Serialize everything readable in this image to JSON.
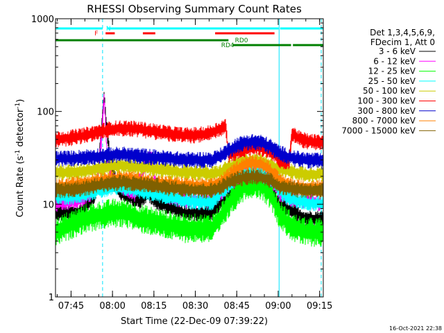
{
  "chart_data": {
    "type": "line",
    "title": "RHESSI Observing Summary Count Rates",
    "xlabel": "Start Time (22-Dec-09 07:39:22)",
    "ylabel_main": "Count Rate (s",
    "ylabel_sup1": "-1",
    "ylabel_mid": " detector",
    "ylabel_sup2": "-1",
    "ylabel_end": ")",
    "yscale": "log",
    "ylim": [
      1,
      1000
    ],
    "xlim": [
      "07:39:22",
      "09:16:20"
    ],
    "y_ticks": [
      {
        "value": 1,
        "label": "1"
      },
      {
        "value": 10,
        "label": "10"
      },
      {
        "value": 100,
        "label": "100"
      },
      {
        "value": 1000,
        "label": "1000"
      }
    ],
    "x_ticks": [
      {
        "value": "07:45",
        "label": "07:45"
      },
      {
        "value": "08:00",
        "label": "08:00"
      },
      {
        "value": "08:15",
        "label": "08:15"
      },
      {
        "value": "08:30",
        "label": "08:30"
      },
      {
        "value": "08:45",
        "label": "08:45"
      },
      {
        "value": "09:00",
        "label": "09:00"
      },
      {
        "value": "09:15",
        "label": "09:15"
      }
    ],
    "legend_placement": "right",
    "legend_header": [
      "Det 1,3,4,5,6,9,",
      "FDecim 1, Att 0"
    ],
    "timestamp": "16-Oct-2021 22:38",
    "vertical_markers": [
      "07:56:25",
      "09:00:20",
      "09:15:35"
    ],
    "flag_bars": [
      {
        "label": "N",
        "color": "#00ffff",
        "segments": [
          [
            "07:39:22",
            "07:56:25"
          ],
          [
            "07:58:10",
            "09:00:10"
          ],
          [
            "09:00:40",
            "09:16:20"
          ]
        ]
      },
      {
        "label": "F",
        "color": "#ff0000",
        "segments": [
          [
            "07:57:30",
            "08:00:50"
          ],
          [
            "08:11:00",
            "08:15:30"
          ],
          [
            "08:37:10",
            "08:58:40"
          ]
        ]
      },
      {
        "label": "RD0",
        "color": "#008000",
        "segments": [
          [
            "07:39:22",
            "08:42:00"
          ]
        ]
      },
      {
        "label": "RD4",
        "color": "#008000",
        "segments": [
          [
            "08:43:30",
            "09:04:40"
          ],
          [
            "09:05:20",
            "09:16:20"
          ]
        ]
      }
    ],
    "series": [
      {
        "name": "3 - 6 keV",
        "color": "#000000",
        "points": [
          [
            "07:39:22",
            8
          ],
          [
            "07:48",
            8
          ],
          [
            "07:54",
            13
          ],
          [
            "07:56",
            60
          ],
          [
            "07:57",
            150
          ],
          [
            "07:58",
            60
          ],
          [
            "08:00",
            22
          ],
          [
            "08:03",
            13
          ],
          [
            "08:06",
            12
          ],
          [
            "08:10",
            11
          ],
          [
            "08:13",
            13
          ],
          [
            "08:15",
            11
          ],
          [
            "08:18",
            10
          ],
          [
            "08:22",
            9
          ],
          [
            "08:26",
            8
          ],
          [
            "08:32",
            8
          ],
          [
            "08:36",
            8
          ],
          [
            "08:39",
            10
          ],
          [
            "08:42",
            12
          ],
          [
            "08:45",
            15
          ],
          [
            "08:48",
            17
          ],
          [
            "08:51",
            18
          ],
          [
            "08:54",
            17
          ],
          [
            "08:57",
            15
          ],
          [
            "08:59",
            12
          ],
          [
            "09:00:20",
            10
          ],
          [
            "09:03",
            9
          ],
          [
            "09:06",
            8
          ],
          [
            "09:10",
            7
          ],
          [
            "09:16:20",
            7
          ]
        ]
      },
      {
        "name": "6 - 12 keV",
        "color": "#ff00ff",
        "points": [
          [
            "07:39:22",
            10
          ],
          [
            "07:48",
            11
          ],
          [
            "07:54",
            14
          ],
          [
            "07:56",
            50
          ],
          [
            "07:57",
            140
          ],
          [
            "07:58",
            35
          ],
          [
            "08:00",
            18
          ],
          [
            "08:04",
            15
          ],
          [
            "08:08",
            13
          ],
          [
            "08:12",
            28
          ],
          [
            "08:14",
            33
          ],
          [
            "08:16",
            14
          ],
          [
            "08:20",
            12
          ],
          [
            "08:26",
            11
          ],
          [
            "08:32",
            11
          ],
          [
            "08:36",
            11
          ],
          [
            "08:39",
            13
          ],
          [
            "08:42",
            16
          ],
          [
            "08:45",
            19
          ],
          [
            "08:48",
            22
          ],
          [
            "08:51",
            24
          ],
          [
            "08:54",
            22
          ],
          [
            "08:57",
            19
          ],
          [
            "08:59",
            16
          ],
          [
            "09:00:20",
            13
          ],
          [
            "09:03",
            12
          ],
          [
            "09:06",
            11
          ],
          [
            "09:10",
            11
          ],
          [
            "09:16:20",
            10
          ]
        ]
      },
      {
        "name": "12 - 25 keV",
        "color": "#00ff00",
        "points": [
          [
            "07:39:22",
            5
          ],
          [
            "07:45",
            6
          ],
          [
            "07:50",
            7
          ],
          [
            "07:55",
            7.5
          ],
          [
            "08:00",
            8
          ],
          [
            "08:05",
            8
          ],
          [
            "08:10",
            7
          ],
          [
            "08:15",
            6.5
          ],
          [
            "08:20",
            6
          ],
          [
            "08:26",
            5.5
          ],
          [
            "08:32",
            5.5
          ],
          [
            "08:36",
            5.5
          ],
          [
            "08:39",
            7
          ],
          [
            "08:42",
            10
          ],
          [
            "08:45",
            13
          ],
          [
            "08:48",
            16
          ],
          [
            "08:51",
            17
          ],
          [
            "08:54",
            16
          ],
          [
            "08:57",
            13
          ],
          [
            "08:59",
            10
          ],
          [
            "09:00:20",
            8
          ],
          [
            "09:03",
            6.5
          ],
          [
            "09:06",
            5.5
          ],
          [
            "09:10",
            5
          ],
          [
            "09:16:20",
            5
          ]
        ]
      },
      {
        "name": "25 - 50 keV",
        "color": "#00ffff",
        "points": [
          [
            "07:39:22",
            12
          ],
          [
            "07:45",
            12
          ],
          [
            "07:50",
            13
          ],
          [
            "07:55",
            14
          ],
          [
            "08:00",
            15
          ],
          [
            "08:05",
            15
          ],
          [
            "08:10",
            14
          ],
          [
            "08:15",
            13
          ],
          [
            "08:20",
            12
          ],
          [
            "08:26",
            11
          ],
          [
            "08:32",
            10.5
          ],
          [
            "08:36",
            10.5
          ],
          [
            "08:39",
            13
          ],
          [
            "08:42",
            16
          ],
          [
            "08:45",
            19
          ],
          [
            "08:48",
            21
          ],
          [
            "08:51",
            22
          ],
          [
            "08:54",
            21
          ],
          [
            "08:57",
            19
          ],
          [
            "08:59",
            16
          ],
          [
            "09:00:20",
            14
          ],
          [
            "09:03",
            12
          ],
          [
            "09:06",
            11
          ],
          [
            "09:10",
            10.5
          ],
          [
            "09:16:20",
            10
          ]
        ]
      },
      {
        "name": "50 - 100 keV",
        "color": "#cccc00",
        "points": [
          [
            "07:39:22",
            22
          ],
          [
            "07:45",
            22
          ],
          [
            "07:50",
            23
          ],
          [
            "07:55",
            24
          ],
          [
            "08:00",
            26
          ],
          [
            "08:05",
            26
          ],
          [
            "08:10",
            25
          ],
          [
            "08:15",
            24
          ],
          [
            "08:20",
            23
          ],
          [
            "08:26",
            22
          ],
          [
            "08:32",
            22
          ],
          [
            "08:36",
            21
          ],
          [
            "08:39",
            22
          ],
          [
            "08:41",
            24
          ],
          [
            "08:45",
            27
          ],
          [
            "08:48",
            29
          ],
          [
            "08:51",
            30
          ],
          [
            "08:54",
            29
          ],
          [
            "08:57",
            27
          ],
          [
            "08:59",
            25
          ],
          [
            "09:00:20",
            24
          ],
          [
            "09:03",
            23
          ],
          [
            "09:06",
            22
          ],
          [
            "09:10",
            21
          ],
          [
            "09:16:20",
            21
          ]
        ]
      },
      {
        "name": "100 - 300 keV",
        "color": "#ff0000",
        "points": [
          [
            "07:39:22",
            50
          ],
          [
            "07:45",
            52
          ],
          [
            "07:50",
            55
          ],
          [
            "07:55",
            60
          ],
          [
            "08:00",
            65
          ],
          [
            "08:05",
            66
          ],
          [
            "08:10",
            64
          ],
          [
            "08:15",
            61
          ],
          [
            "08:20",
            58
          ],
          [
            "08:26",
            55
          ],
          [
            "08:32",
            56
          ],
          [
            "08:36",
            59
          ],
          [
            "08:39",
            65
          ],
          [
            "08:41",
            70
          ],
          [
            "08:42",
            34
          ],
          [
            "08:45",
            36
          ],
          [
            "08:48",
            39
          ],
          [
            "08:51",
            42
          ],
          [
            "08:54",
            40
          ],
          [
            "08:57",
            37
          ],
          [
            "08:59",
            33
          ],
          [
            "09:00:20",
            30
          ],
          [
            "09:02",
            29
          ],
          [
            "09:04",
            28
          ],
          [
            "09:05",
            58
          ],
          [
            "09:08",
            50
          ],
          [
            "09:12",
            47
          ],
          [
            "09:16:20",
            46
          ]
        ]
      },
      {
        "name": "300 - 800 keV",
        "color": "#0000cc",
        "points": [
          [
            "07:39:22",
            31
          ],
          [
            "07:45",
            31
          ],
          [
            "07:50",
            32
          ],
          [
            "07:55",
            33
          ],
          [
            "08:00",
            34
          ],
          [
            "08:05",
            34
          ],
          [
            "08:10",
            33
          ],
          [
            "08:15",
            32
          ],
          [
            "08:20",
            31
          ],
          [
            "08:26",
            30
          ],
          [
            "08:32",
            30
          ],
          [
            "08:36",
            30
          ],
          [
            "08:39",
            33
          ],
          [
            "08:42",
            38
          ],
          [
            "08:45",
            43
          ],
          [
            "08:48",
            46
          ],
          [
            "08:51",
            47
          ],
          [
            "08:54",
            46
          ],
          [
            "08:57",
            42
          ],
          [
            "08:59",
            38
          ],
          [
            "09:00:20",
            36
          ],
          [
            "09:03",
            33
          ],
          [
            "09:06",
            31
          ],
          [
            "09:10",
            30
          ],
          [
            "09:16:20",
            29
          ]
        ]
      },
      {
        "name": "800 - 7000 keV",
        "color": "#ff8000",
        "points": [
          [
            "07:39:22",
            15
          ],
          [
            "07:45",
            16
          ],
          [
            "07:50",
            17
          ],
          [
            "07:55",
            18
          ],
          [
            "08:00",
            19
          ],
          [
            "08:05",
            19
          ],
          [
            "08:10",
            18
          ],
          [
            "08:15",
            17
          ],
          [
            "08:20",
            16.5
          ],
          [
            "08:26",
            16
          ],
          [
            "08:32",
            15.5
          ],
          [
            "08:36",
            15.5
          ],
          [
            "08:39",
            17
          ],
          [
            "08:42",
            20
          ],
          [
            "08:45",
            24
          ],
          [
            "08:48",
            27
          ],
          [
            "08:51",
            28
          ],
          [
            "08:54",
            27
          ],
          [
            "08:57",
            24
          ],
          [
            "08:59",
            20
          ],
          [
            "09:00:20",
            18
          ],
          [
            "09:03",
            16.5
          ],
          [
            "09:06",
            15.5
          ],
          [
            "09:10",
            15
          ],
          [
            "09:16:20",
            15
          ]
        ]
      },
      {
        "name": "7000 - 15000 keV",
        "color": "#806000",
        "points": [
          [
            "07:39:22",
            14
          ],
          [
            "07:45",
            14.5
          ],
          [
            "07:50",
            15
          ],
          [
            "07:55",
            16
          ],
          [
            "08:00",
            17
          ],
          [
            "08:05",
            17
          ],
          [
            "08:10",
            16.5
          ],
          [
            "08:15",
            16
          ],
          [
            "08:20",
            15
          ],
          [
            "08:26",
            14.5
          ],
          [
            "08:32",
            14
          ],
          [
            "08:36",
            14
          ],
          [
            "08:39",
            15
          ],
          [
            "08:42",
            17
          ],
          [
            "08:45",
            18.5
          ],
          [
            "08:48",
            19.5
          ],
          [
            "08:51",
            20
          ],
          [
            "08:54",
            19.5
          ],
          [
            "08:57",
            18
          ],
          [
            "08:59",
            16.5
          ],
          [
            "09:00:20",
            15.5
          ],
          [
            "09:03",
            15
          ],
          [
            "09:06",
            14.5
          ],
          [
            "09:10",
            14
          ],
          [
            "09:16:20",
            14
          ]
        ]
      }
    ]
  }
}
